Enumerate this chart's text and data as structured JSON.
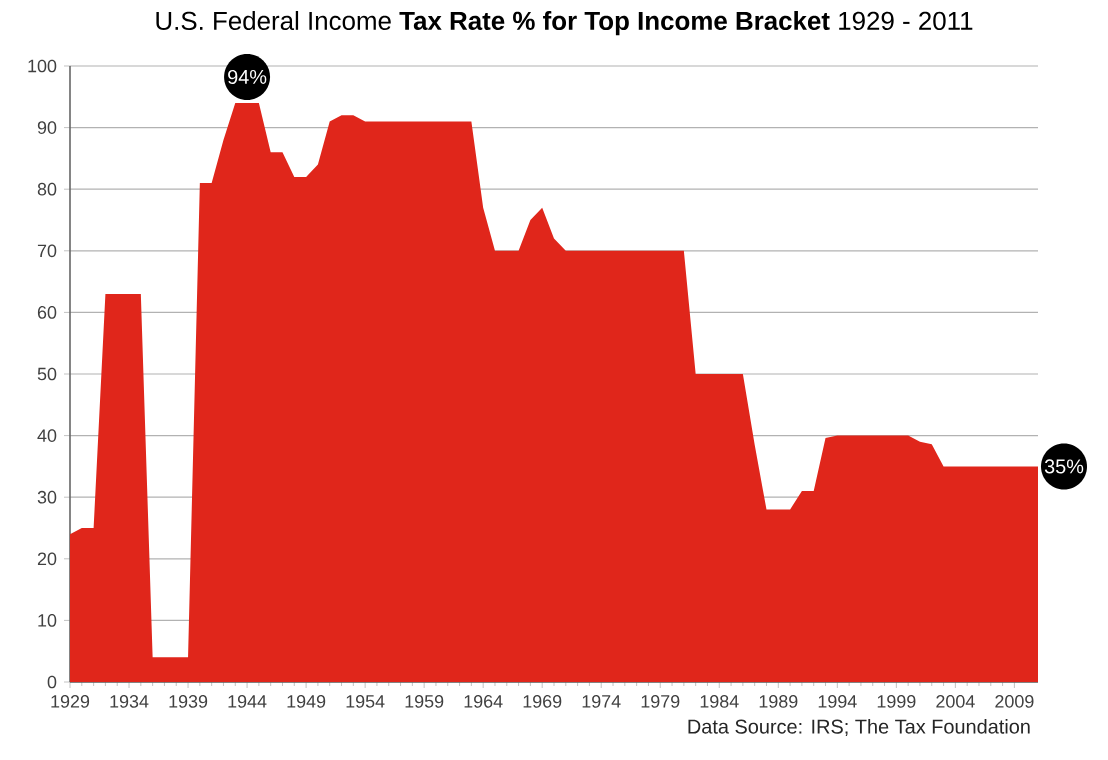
{
  "chart_data": {
    "type": "area",
    "title": "U.S. Federal Income **Tax Rate % for Top Income Bracket** 1929 - 2011",
    "x": [
      1929,
      1930,
      1931,
      1932,
      1933,
      1934,
      1935,
      1936,
      1937,
      1938,
      1939,
      1940,
      1941,
      1942,
      1943,
      1944,
      1945,
      1946,
      1947,
      1948,
      1949,
      1950,
      1951,
      1952,
      1953,
      1954,
      1955,
      1956,
      1957,
      1958,
      1959,
      1960,
      1961,
      1962,
      1963,
      1964,
      1965,
      1966,
      1967,
      1968,
      1969,
      1970,
      1971,
      1972,
      1973,
      1974,
      1975,
      1976,
      1977,
      1978,
      1979,
      1980,
      1981,
      1982,
      1983,
      1984,
      1985,
      1986,
      1987,
      1988,
      1989,
      1990,
      1991,
      1992,
      1993,
      1994,
      1995,
      1996,
      1997,
      1998,
      1999,
      2000,
      2001,
      2002,
      2003,
      2004,
      2005,
      2006,
      2007,
      2008,
      2009,
      2010,
      2011
    ],
    "values": [
      24,
      25,
      25,
      63,
      63,
      63,
      63,
      4,
      4,
      4,
      4,
      81,
      81,
      88,
      94,
      94,
      94,
      86,
      86,
      82,
      82,
      84,
      91,
      92,
      92,
      91,
      91,
      91,
      91,
      91,
      91,
      91,
      91,
      91,
      91,
      77,
      70,
      70,
      70,
      75,
      77,
      72,
      70,
      70,
      70,
      70,
      70,
      70,
      70,
      70,
      70,
      70,
      70,
      50,
      50,
      50,
      50,
      50,
      38.5,
      28,
      28,
      28,
      31,
      31,
      39.6,
      40,
      40,
      40,
      40,
      40,
      40,
      40,
      39,
      38.6,
      35,
      35,
      35,
      35,
      35,
      35,
      35,
      35,
      35
    ],
    "color": "#e0261b",
    "xlim": [
      1929,
      2011
    ],
    "xticks": [
      1929,
      1934,
      1939,
      1944,
      1949,
      1954,
      1959,
      1964,
      1969,
      1974,
      1979,
      1984,
      1989,
      1994,
      1999,
      2004,
      2009
    ],
    "ylim": [
      0,
      100
    ],
    "yticks": [
      0,
      10,
      20,
      30,
      40,
      50,
      60,
      70,
      80,
      90,
      100
    ],
    "grid": "y",
    "annotations": [
      {
        "text": "94%",
        "x": 1944,
        "y": 94
      },
      {
        "text": "35%",
        "x": 2011,
        "y": 35
      },
      "Data Source: IRS; The Tax Foundation"
    ]
  }
}
